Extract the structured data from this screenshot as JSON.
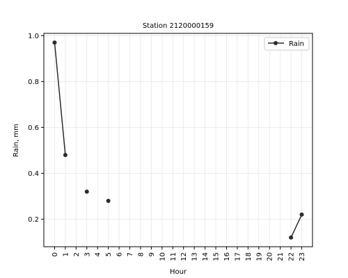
{
  "chart_data": {
    "type": "line",
    "title": "Station 2120000159",
    "xlabel": "Hour",
    "ylabel": "Rain, mm",
    "x_ticks": [
      "0",
      "1",
      "2",
      "3",
      "4",
      "5",
      "6",
      "7",
      "8",
      "9",
      "10",
      "11",
      "12",
      "13",
      "14",
      "15",
      "16",
      "17",
      "18",
      "19",
      "20",
      "21",
      "22",
      "23"
    ],
    "y_ticks": [
      "0.2",
      "0.4",
      "0.6",
      "0.8",
      "1.0"
    ],
    "xlim": [
      -1,
      24
    ],
    "ylim": [
      0.08,
      1.01
    ],
    "grid": true,
    "legend_position": "top-right",
    "series": [
      {
        "name": "Rain",
        "color": "#2b2b2b",
        "points": [
          {
            "x": 0,
            "y": 0.97
          },
          {
            "x": 1,
            "y": 0.48
          },
          {
            "x": 3,
            "y": 0.32
          },
          {
            "x": 5,
            "y": 0.28
          },
          {
            "x": 22,
            "y": 0.12
          },
          {
            "x": 23,
            "y": 0.22
          }
        ]
      }
    ]
  }
}
